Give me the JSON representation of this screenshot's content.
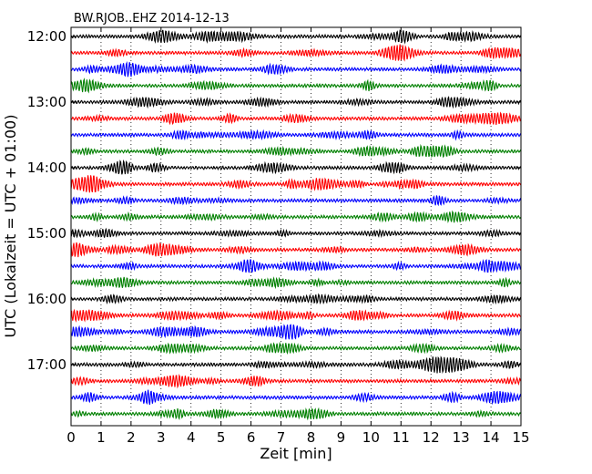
{
  "chart_data": {
    "type": "line",
    "title": "BW.RJOB..EHZ 2014-12-13",
    "xlabel": "Zeit  [min]",
    "ylabel": "UTC (Lokalzeit = UTC + 01:00)",
    "xlim": [
      0,
      15
    ],
    "x_ticks": [
      "0",
      "1",
      "2",
      "3",
      "4",
      "5",
      "6",
      "7",
      "8",
      "9",
      "10",
      "11",
      "12",
      "13",
      "14",
      "15"
    ],
    "y_ticks": [
      "12:00",
      "13:00",
      "14:00",
      "15:00",
      "16:00",
      "17:00"
    ],
    "grid": true,
    "trace_colors": [
      "#000000",
      "#ff0000",
      "#0000ff",
      "#008000"
    ],
    "traces": [
      {
        "start": "12:00",
        "color": "#000000"
      },
      {
        "start": "12:15",
        "color": "#ff0000"
      },
      {
        "start": "12:30",
        "color": "#0000ff"
      },
      {
        "start": "12:45",
        "color": "#008000"
      },
      {
        "start": "13:00",
        "color": "#000000"
      },
      {
        "start": "13:15",
        "color": "#ff0000"
      },
      {
        "start": "13:30",
        "color": "#0000ff"
      },
      {
        "start": "13:45",
        "color": "#008000"
      },
      {
        "start": "14:00",
        "color": "#000000"
      },
      {
        "start": "14:15",
        "color": "#ff0000"
      },
      {
        "start": "14:30",
        "color": "#0000ff"
      },
      {
        "start": "14:45",
        "color": "#008000"
      },
      {
        "start": "15:00",
        "color": "#000000"
      },
      {
        "start": "15:15",
        "color": "#ff0000"
      },
      {
        "start": "15:30",
        "color": "#0000ff"
      },
      {
        "start": "15:45",
        "color": "#008000"
      },
      {
        "start": "16:00",
        "color": "#000000"
      },
      {
        "start": "16:15",
        "color": "#ff0000"
      },
      {
        "start": "16:30",
        "color": "#0000ff"
      },
      {
        "start": "16:45",
        "color": "#008000"
      },
      {
        "start": "17:00",
        "color": "#000000"
      },
      {
        "start": "17:15",
        "color": "#ff0000"
      },
      {
        "start": "17:30",
        "color": "#0000ff"
      },
      {
        "start": "17:45",
        "color": "#008000"
      }
    ]
  }
}
